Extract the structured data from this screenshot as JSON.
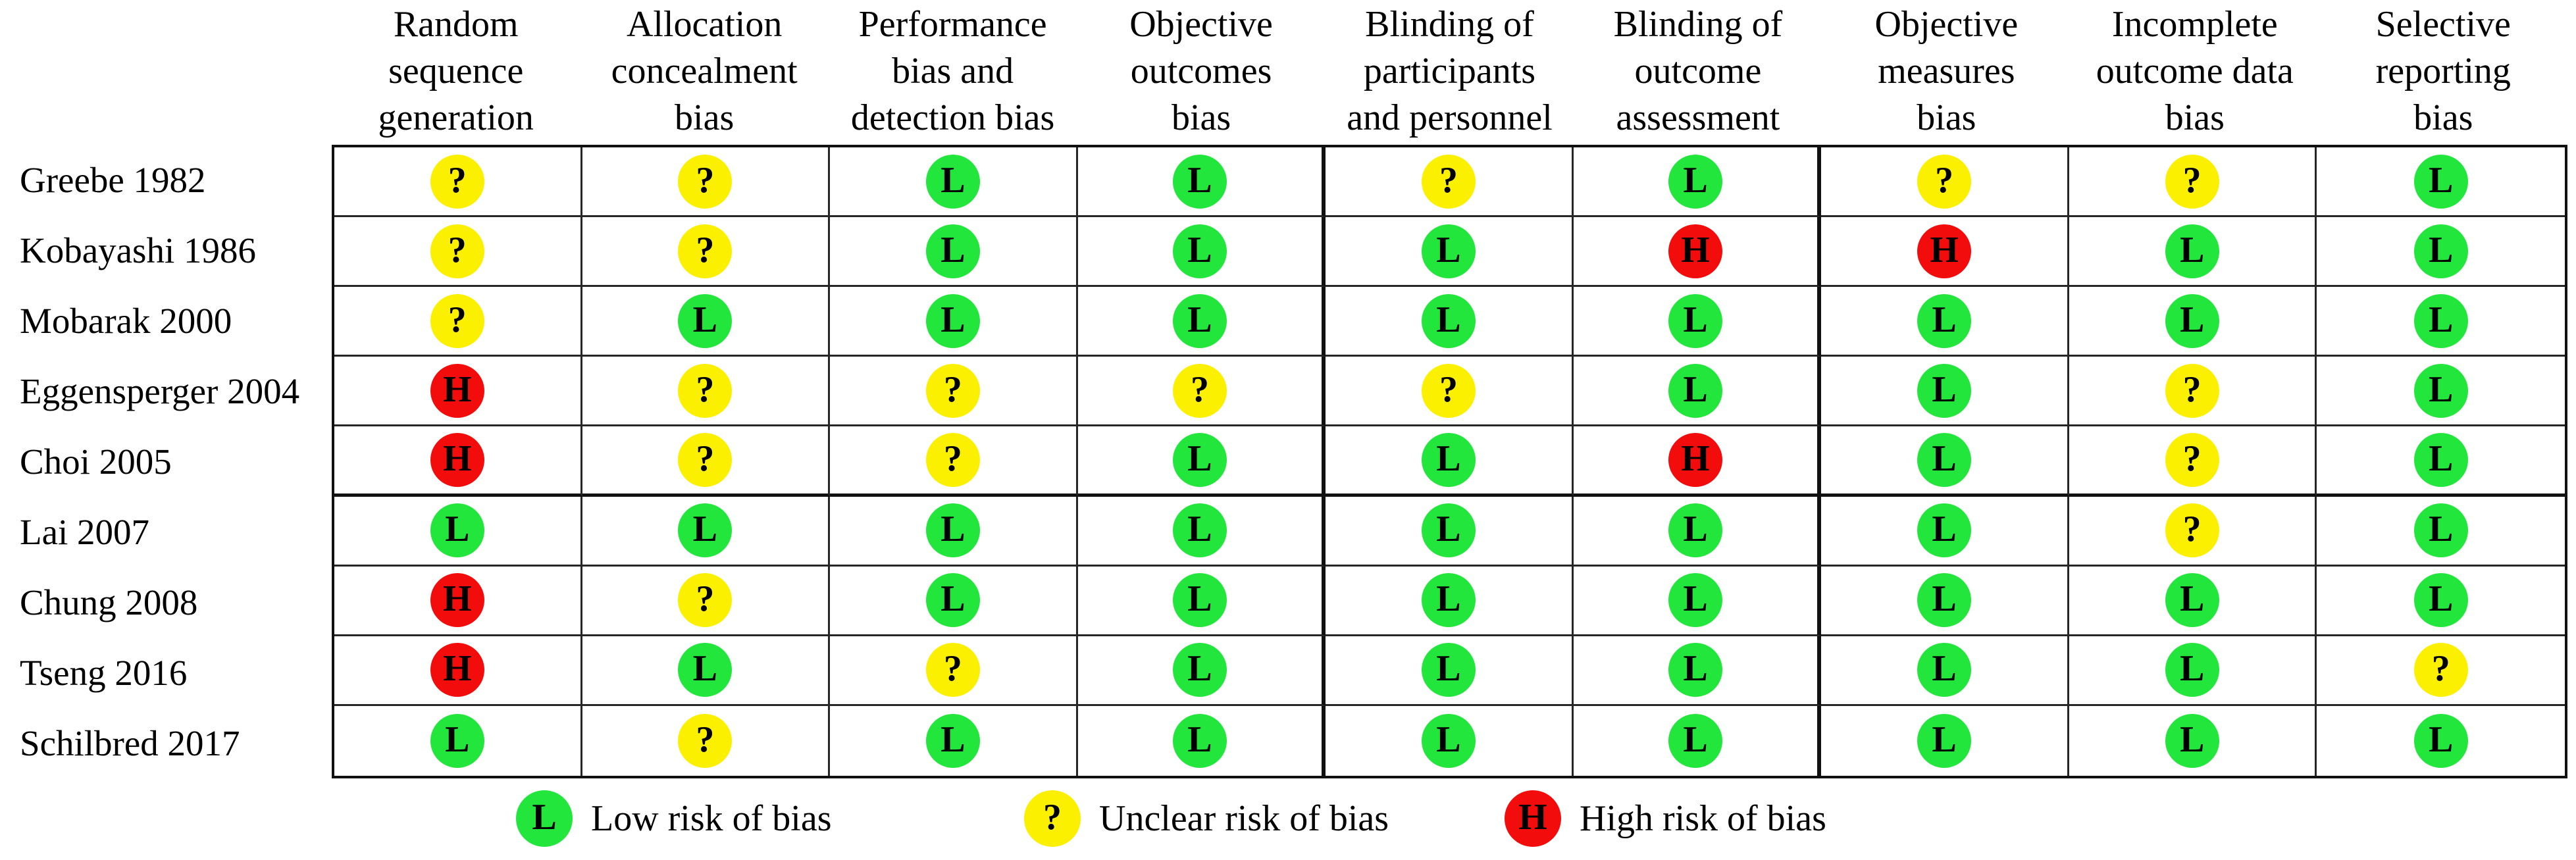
{
  "chart_data": {
    "type": "table",
    "description": "Risk of bias summary table: review authors' judgements about each risk of bias item for each included study",
    "columns": [
      {
        "label": "Random sequence generation",
        "lines": [
          "Random",
          "sequence",
          "generation"
        ]
      },
      {
        "label": "Allocation concealment bias",
        "lines": [
          "Allocation",
          "concealment",
          "bias"
        ]
      },
      {
        "label": "Performance bias and detection bias",
        "lines": [
          "Performance",
          "bias and",
          "detection bias"
        ]
      },
      {
        "label": "Objective outcomes bias",
        "lines": [
          "Objective",
          "outcomes",
          "bias"
        ]
      },
      {
        "label": "Blinding of participants and personnel",
        "lines": [
          "Blinding of",
          "participants",
          "and personnel"
        ]
      },
      {
        "label": "Blinding of outcome assessment",
        "lines": [
          "Blinding of",
          "outcome",
          "assessment"
        ]
      },
      {
        "label": "Objective measures bias",
        "lines": [
          "Objective",
          "measures",
          "bias"
        ]
      },
      {
        "label": "Incomplete outcome data bias",
        "lines": [
          "Incomplete",
          "outcome data",
          "bias"
        ]
      },
      {
        "label": "Selective reporting bias",
        "lines": [
          "Selective",
          "reporting",
          "bias"
        ]
      }
    ],
    "rows": [
      {
        "study": "Greebe 1982",
        "judgements": [
          "?",
          "?",
          "L",
          "L",
          "?",
          "L",
          "?",
          "?",
          "L"
        ]
      },
      {
        "study": "Kobayashi 1986",
        "judgements": [
          "?",
          "?",
          "L",
          "L",
          "L",
          "H",
          "H",
          "L",
          "L"
        ]
      },
      {
        "study": "Mobarak 2000",
        "judgements": [
          "?",
          "L",
          "L",
          "L",
          "L",
          "L",
          "L",
          "L",
          "L"
        ]
      },
      {
        "study": "Eggensperger 2004",
        "judgements": [
          "H",
          "?",
          "?",
          "?",
          "?",
          "L",
          "L",
          "?",
          "L"
        ]
      },
      {
        "study": "Choi 2005",
        "judgements": [
          "H",
          "?",
          "?",
          "L",
          "L",
          "H",
          "L",
          "?",
          "L"
        ]
      },
      {
        "study": "Lai 2007",
        "judgements": [
          "L",
          "L",
          "L",
          "L",
          "L",
          "L",
          "L",
          "?",
          "L"
        ]
      },
      {
        "study": "Chung 2008",
        "judgements": [
          "H",
          "?",
          "L",
          "L",
          "L",
          "L",
          "L",
          "L",
          "L"
        ]
      },
      {
        "study": "Tseng 2016",
        "judgements": [
          "H",
          "L",
          "?",
          "L",
          "L",
          "L",
          "L",
          "L",
          "?"
        ]
      },
      {
        "study": "Schilbred 2017",
        "judgements": [
          "L",
          "?",
          "L",
          "L",
          "L",
          "L",
          "L",
          "L",
          "L"
        ]
      }
    ],
    "colors": {
      "L": "#22E63C",
      "?": "#FBF000",
      "H": "#F20C0C"
    },
    "legend": [
      {
        "symbol": "L",
        "label": "Low risk of bias"
      },
      {
        "symbol": "?",
        "label": "Unclear risk of bias"
      },
      {
        "symbol": "H",
        "label": "High risk of bias"
      }
    ]
  }
}
